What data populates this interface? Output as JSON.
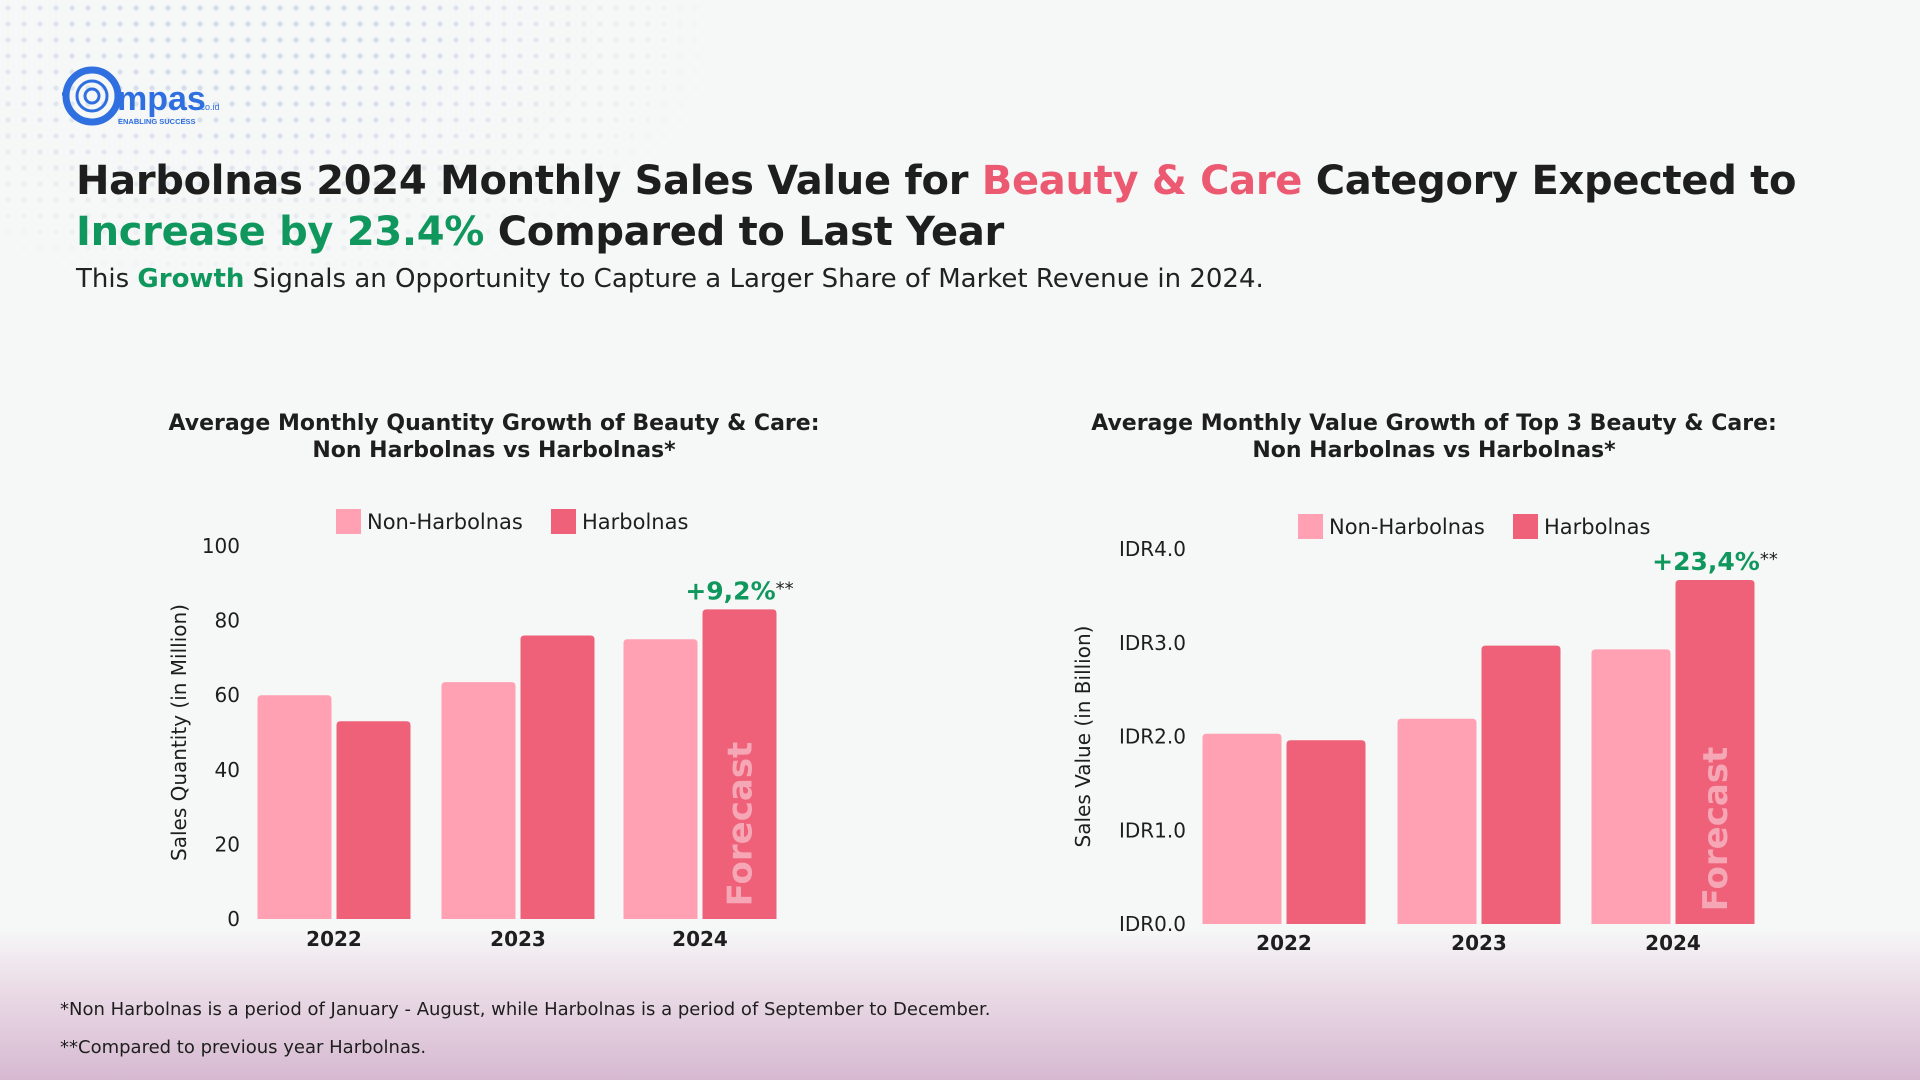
{
  "brand": {
    "logo_text": "mpas",
    "domain": ".co.id",
    "tagline": "ENABLING SUCCESS"
  },
  "title": {
    "part1": "Harbolnas 2024 Monthly Sales Value for ",
    "highlight1": "Beauty & Care",
    "part2": " Category Expected to",
    "highlight2": "Increase by 23.4%",
    "part3": " Compared to Last Year"
  },
  "subtitle": {
    "part1": "This ",
    "highlight": "Growth",
    "part2": " Signals an Opportunity to Capture a Larger Share of Market Revenue in 2024."
  },
  "colors": {
    "non_harbolnas": "#ffa1b2",
    "harbolnas": "#ef6079",
    "growth": "#10975e",
    "pink": "#ec5a72"
  },
  "chart_data": [
    {
      "type": "bar",
      "title_line1": "Average Monthly Quantity Growth of Beauty & Care:",
      "title_line2": "Non Harbolnas vs Harbolnas*",
      "categories": [
        "2022",
        "2023",
        "2024"
      ],
      "series": [
        {
          "name": "Non-Harbolnas",
          "values": [
            60,
            63.5,
            75
          ]
        },
        {
          "name": "Harbolnas",
          "values": [
            53,
            76,
            83
          ]
        }
      ],
      "ylabel": "Sales Quantity (in Million)",
      "ylim": [
        0,
        100
      ],
      "yticks": [
        0,
        20,
        40,
        60,
        80,
        100
      ],
      "ytick_labels": [
        "0",
        "20",
        "40",
        "60",
        "80",
        "100"
      ],
      "growth_label": "+9,2%",
      "growth_suffix": "**",
      "forecast_label": "Forecast",
      "legend": [
        "Non-Harbolnas",
        "Harbolnas"
      ]
    },
    {
      "type": "bar",
      "title_line1": "Average Monthly Value Growth of Top 3 Beauty & Care:",
      "title_line2": "Non Harbolnas vs Harbolnas*",
      "categories": [
        "2022",
        "2023",
        "2024"
      ],
      "series": [
        {
          "name": "Non-Harbolnas",
          "values": [
            2.03,
            2.19,
            2.93
          ]
        },
        {
          "name": "Harbolnas",
          "values": [
            1.96,
            2.97,
            3.67
          ]
        }
      ],
      "ylabel": "Sales Value (in Billion)",
      "ylim": [
        0,
        4
      ],
      "yticks": [
        0,
        1,
        2,
        3,
        4
      ],
      "ytick_labels": [
        "IDR0.0",
        "IDR1.0",
        "IDR2.0",
        "IDR3.0",
        "IDR4.0"
      ],
      "growth_label": "+23,4%",
      "growth_suffix": "**",
      "forecast_label": "Forecast",
      "legend": [
        "Non-Harbolnas",
        "Harbolnas"
      ]
    }
  ],
  "footnotes": [
    "*Non Harbolnas is a period of January - August, while Harbolnas is a period of September to December.",
    "**Compared to previous year Harbolnas."
  ]
}
